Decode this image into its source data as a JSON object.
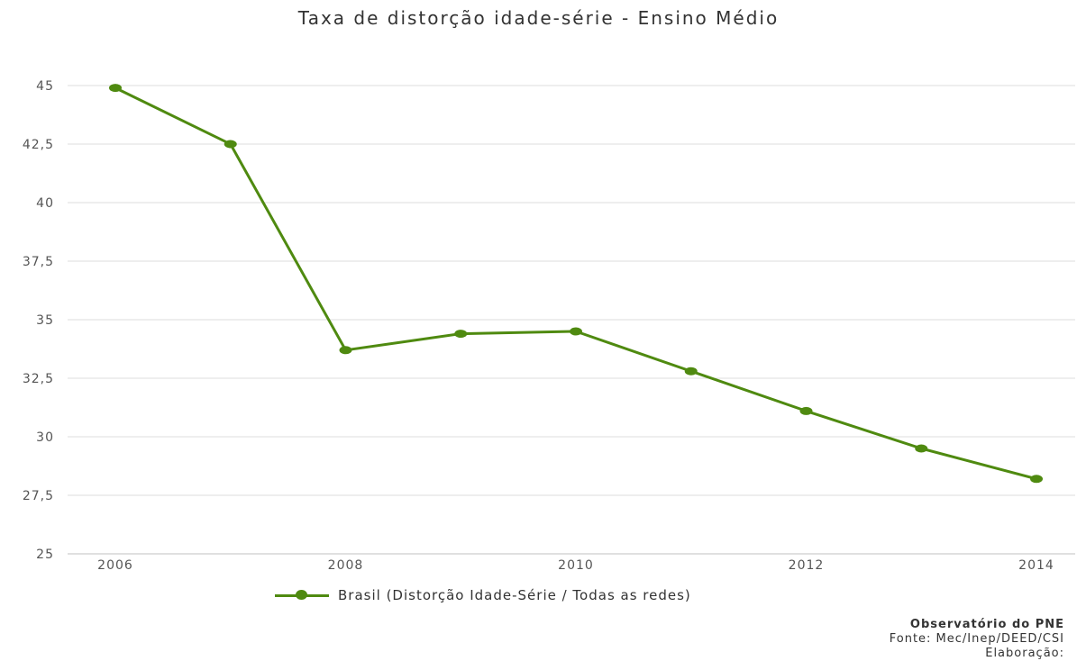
{
  "chart_data": {
    "type": "line",
    "title": "Taxa de distorção idade-série - Ensino Médio",
    "xlabel": "",
    "ylabel": "",
    "x": [
      2006,
      2007,
      2008,
      2009,
      2010,
      2011,
      2012,
      2013,
      2014
    ],
    "x_ticks": [
      "2006",
      "2008",
      "2010",
      "2012",
      "2014"
    ],
    "y_ticks": [
      "45",
      "42,5",
      "40",
      "37,5",
      "35",
      "32,5",
      "30",
      "27,5",
      "25"
    ],
    "y_tick_values": [
      45,
      42.5,
      40,
      37.5,
      35,
      32.5,
      30,
      27.5,
      25
    ],
    "ylim": [
      25,
      45
    ],
    "grid": true,
    "legend_position": "bottom",
    "series": [
      {
        "name": "Brasil (Distorção Idade-Série / Todas as redes)",
        "color": "#4f8a10",
        "values": [
          44.9,
          42.5,
          33.7,
          34.4,
          34.5,
          32.8,
          31.1,
          29.5,
          28.2
        ]
      }
    ]
  },
  "credits": {
    "line1": "Observatório do PNE",
    "line2": "Fonte: Mec/Inep/DEED/CSI",
    "line3": "Elaboração:"
  }
}
